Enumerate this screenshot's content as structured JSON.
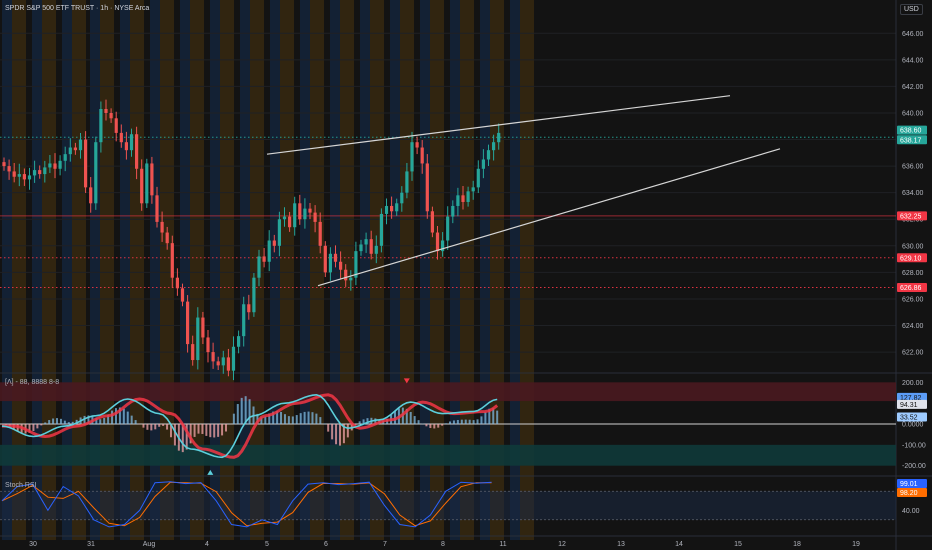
{
  "header": {
    "title": "SPDR S&P 500 ETF TRUST · 1h · NYSE Arca",
    "currency": "USD"
  },
  "colors": {
    "up": "#26a69a",
    "down": "#ef5350",
    "session_orange": "#3a2a10",
    "session_blue": "#142438",
    "wedge": "#d6d6d6",
    "teal_line": "#26a69a",
    "red_level": "#f23645",
    "macd_fast": "#5ccfdc",
    "macd_slow": "#f23645",
    "stoch_k": "#2962ff",
    "stoch_d": "#ff6d00"
  },
  "chart_data": [
    {
      "type": "candlestick",
      "pane": "price",
      "x_ticks": [
        "30",
        "31",
        "Aug",
        "4",
        "5",
        "6",
        "7",
        "8",
        "11",
        "12",
        "13",
        "14",
        "15",
        "18",
        "19"
      ],
      "y_ticks": [
        "646.00",
        "644.00",
        "642.00",
        "640.00",
        "638.00",
        "636.00",
        "634.00",
        "632.00",
        "630.00",
        "628.00",
        "626.00",
        "624.00",
        "622.00"
      ],
      "ylim": [
        620.5,
        647
      ],
      "price_levels": [
        {
          "label": "638.60",
          "value": 638.6,
          "style": "badge-teal"
        },
        {
          "label": "638.17",
          "value": 638.17,
          "style": "dotted-teal"
        },
        {
          "label": "632.25",
          "value": 632.25,
          "style": "solid-red"
        },
        {
          "label": "629.10",
          "value": 629.1,
          "style": "dotted-red"
        },
        {
          "label": "626.86",
          "value": 626.86,
          "style": "dotted-red"
        }
      ],
      "closes": [
        636.0,
        635.6,
        635.2,
        635.4,
        635.0,
        635.3,
        635.7,
        635.4,
        635.9,
        636.2,
        635.8,
        636.4,
        636.9,
        637.4,
        637.2,
        638.0,
        634.4,
        633.2,
        637.8,
        640.3,
        640.0,
        639.6,
        638.5,
        637.8,
        637.2,
        638.4,
        635.8,
        633.2,
        636.2,
        633.8,
        631.8,
        631.0,
        630.2,
        627.6,
        626.8,
        625.8,
        622.6,
        621.4,
        624.6,
        623.1,
        622.0,
        621.3,
        621.0,
        621.6,
        620.6,
        622.4,
        623.2,
        625.6,
        625.0,
        627.6,
        629.2,
        628.8,
        630.4,
        630.0,
        632.0,
        632.2,
        631.4,
        633.2,
        632.0,
        632.8,
        632.5,
        631.8,
        630.0,
        628.0,
        629.4,
        628.8,
        628.2,
        627.4,
        627.6,
        629.6,
        630.1,
        630.5,
        629.4,
        630.0,
        632.4,
        633.0,
        632.6,
        633.2,
        634.0,
        635.6,
        637.8,
        637.4,
        636.2,
        632.6,
        631.0,
        629.6,
        630.4,
        632.2,
        633.0,
        633.8,
        633.3,
        634.1,
        634.4,
        635.8,
        636.5,
        637.2,
        637.8,
        638.5
      ]
    },
    {
      "type": "histogram",
      "pane": "macd",
      "label": "[Λ] - 88, 8888 8-8",
      "y_ticks": [
        "200.00",
        "100.00",
        "0.0000",
        "-100.00",
        "-200.00"
      ],
      "ylim": [
        -240,
        240
      ],
      "value_badges": [
        {
          "label": "127.82",
          "value": 127.82
        },
        {
          "label": "94.31",
          "value": 94.31
        },
        {
          "label": "33.52",
          "value": 33.52
        }
      ],
      "zones": [
        {
          "from": 110,
          "to": 200,
          "color": "red"
        },
        {
          "from": -100,
          "to": -200,
          "color": "teal"
        }
      ],
      "signals": [
        {
          "x_index": 53,
          "type": "buy",
          "direction": "up"
        },
        {
          "x_index": 103,
          "type": "sell",
          "direction": "down"
        }
      ],
      "line_points": {
        "x": [
          0,
          8,
          16,
          24,
          32,
          40,
          48,
          56,
          64,
          72,
          80,
          88,
          96,
          104,
          112,
          120,
          126
        ],
        "values": [
          -10,
          -60,
          -10,
          40,
          120,
          50,
          -120,
          -160,
          40,
          100,
          140,
          -20,
          20,
          105,
          50,
          60,
          118
        ]
      }
    },
    {
      "type": "line",
      "pane": "stoch",
      "label": "Stoch RSI",
      "y_ticks": [
        "40.00"
      ],
      "ylim": [
        -10,
        110
      ],
      "value_badges": [
        {
          "label": "99.01",
          "value": 99.01
        },
        {
          "label": "98.20",
          "value": 98.2
        }
      ]
    }
  ]
}
